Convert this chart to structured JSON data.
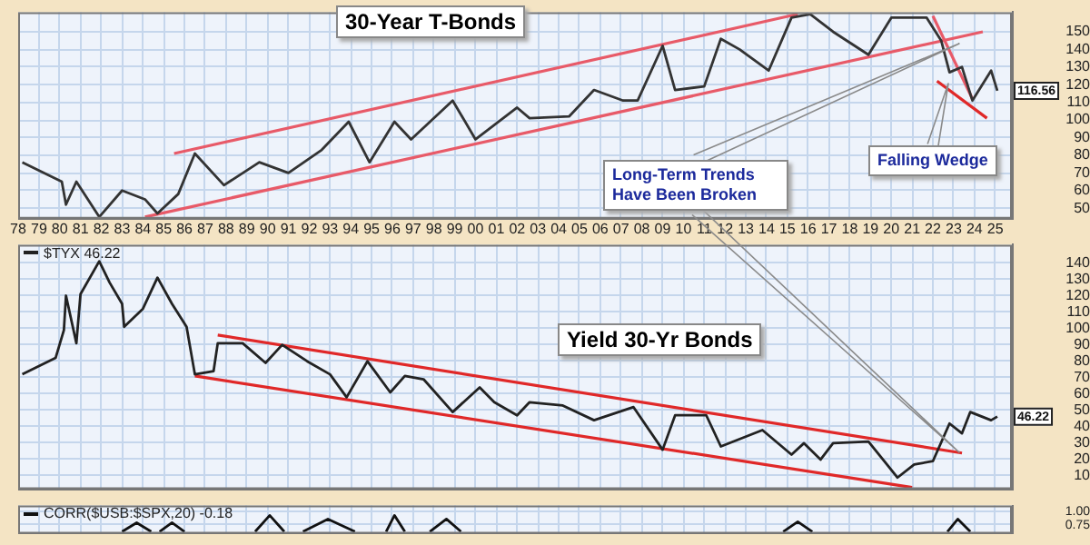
{
  "chart_data": [
    {
      "type": "line",
      "title": "30-Year T-Bonds",
      "xlim": [
        1978,
        2025.8
      ],
      "xticks": [
        {
          "value": 1978,
          "label": "78"
        },
        {
          "value": 1979,
          "label": "79"
        },
        {
          "value": 1980,
          "label": "80"
        },
        {
          "value": 1981,
          "label": "81"
        },
        {
          "value": 1982,
          "label": "82"
        },
        {
          "value": 1983,
          "label": "83"
        },
        {
          "value": 1984,
          "label": "84"
        },
        {
          "value": 1985,
          "label": "85"
        },
        {
          "value": 1986,
          "label": "86"
        },
        {
          "value": 1987,
          "label": "87"
        },
        {
          "value": 1988,
          "label": "88"
        },
        {
          "value": 1989,
          "label": "89"
        },
        {
          "value": 1990,
          "label": "90"
        },
        {
          "value": 1991,
          "label": "91"
        },
        {
          "value": 1992,
          "label": "92"
        },
        {
          "value": 1993,
          "label": "93"
        },
        {
          "value": 1994,
          "label": "94"
        },
        {
          "value": 1995,
          "label": "95"
        },
        {
          "value": 1996,
          "label": "96"
        },
        {
          "value": 1997,
          "label": "97"
        },
        {
          "value": 1998,
          "label": "98"
        },
        {
          "value": 1999,
          "label": "99"
        },
        {
          "value": 2000,
          "label": "00"
        },
        {
          "value": 2001,
          "label": "01"
        },
        {
          "value": 2002,
          "label": "02"
        },
        {
          "value": 2003,
          "label": "03"
        },
        {
          "value": 2004,
          "label": "04"
        },
        {
          "value": 2005,
          "label": "05"
        },
        {
          "value": 2006,
          "label": "06"
        },
        {
          "value": 2007,
          "label": "07"
        },
        {
          "value": 2008,
          "label": "08"
        },
        {
          "value": 2009,
          "label": "09"
        },
        {
          "value": 2010,
          "label": "10"
        },
        {
          "value": 2011,
          "label": "11"
        },
        {
          "value": 2012,
          "label": "12"
        },
        {
          "value": 2013,
          "label": "13"
        },
        {
          "value": 2014,
          "label": "14"
        },
        {
          "value": 2015,
          "label": "15"
        },
        {
          "value": 2016,
          "label": "16"
        },
        {
          "value": 2017,
          "label": "17"
        },
        {
          "value": 2018,
          "label": "18"
        },
        {
          "value": 2019,
          "label": "19"
        },
        {
          "value": 2020,
          "label": "20"
        },
        {
          "value": 2021,
          "label": "21"
        },
        {
          "value": 2022,
          "label": "22"
        },
        {
          "value": 2023,
          "label": "23"
        },
        {
          "value": 2024,
          "label": "24"
        },
        {
          "value": 2025,
          "label": "25"
        }
      ],
      "ylim": [
        44,
        161
      ],
      "yticks": [
        50,
        60,
        70,
        80,
        90,
        100,
        110,
        120,
        130,
        140,
        150
      ],
      "grid": true,
      "marker": "none",
      "annotations": [
        "Long-Term Trends Have Been Broken",
        "Falling Wedge"
      ],
      "series": [
        {
          "color": "#333333",
          "x": [
            1978.2,
            1980.1,
            1980.3,
            1980.8,
            1981.9,
            1983.0,
            1984.1,
            1984.7,
            1985.7,
            1986.5,
            1987.9,
            1989.6,
            1991.0,
            1992.6,
            1993.9,
            1994.9,
            1996.1,
            1996.9,
            1998.9,
            2000.0,
            2002.0,
            2002.6,
            2004.5,
            2005.7,
            2007.1,
            2007.8,
            2009.0,
            2009.6,
            2011.0,
            2011.8,
            2012.7,
            2014.1,
            2015.2,
            2016.1,
            2017.2,
            2018.9,
            2020.0,
            2021.7,
            2022.4,
            2022.8,
            2023.4,
            2023.9,
            2024.8,
            2025.1
          ],
          "values": [
            76,
            65,
            52,
            65,
            45,
            60,
            55,
            47,
            58,
            81,
            63,
            76,
            70,
            83,
            99,
            76,
            99,
            89,
            111,
            89,
            107,
            101,
            102,
            117,
            111,
            111,
            142,
            117,
            119,
            146,
            140,
            128,
            158,
            160,
            150,
            137,
            158,
            158,
            145,
            127,
            130,
            111,
            128,
            116.56
          ],
          "value_labels": [
            null,
            null,
            null,
            null,
            null,
            null,
            null,
            null,
            null,
            null,
            null,
            null,
            null,
            null,
            null,
            null,
            null,
            null,
            null,
            null,
            null,
            null,
            null,
            null,
            null,
            null,
            null,
            null,
            null,
            null,
            null,
            null,
            null,
            null,
            null,
            null,
            null,
            null,
            null,
            null,
            null,
            null,
            null,
            "116.56"
          ]
        },
        {
          "type": "line",
          "color": "#e85a68",
          "x": [
            1985.5,
            2015.5
          ],
          "values": [
            81,
            160
          ]
        },
        {
          "type": "line",
          "color": "#e85a68",
          "x": [
            1984.1,
            2024.4
          ],
          "values": [
            45,
            150
          ]
        },
        {
          "type": "line",
          "color": "#e85a68",
          "x": [
            2022.0,
            2023.9
          ],
          "values": [
            159,
            112
          ]
        },
        {
          "type": "line",
          "color": "#e02828",
          "x": [
            2022.2,
            2024.6
          ],
          "values": [
            122,
            101
          ]
        }
      ]
    },
    {
      "type": "line",
      "title": "Yield 30-Yr Bonds",
      "xlim": [
        1978,
        2025.8
      ],
      "xticks": [
        1978,
        1979,
        1980,
        1981,
        1982,
        1983,
        1984,
        1985,
        1986,
        1987,
        1988,
        1989,
        1990,
        1991,
        1992,
        1993,
        1994,
        1995,
        1996,
        1997,
        1998,
        1999,
        2000,
        2001,
        2002,
        2003,
        2004,
        2005,
        2006,
        2007,
        2008,
        2009,
        2010,
        2011,
        2012,
        2013,
        2014,
        2015,
        2016,
        2017,
        2018,
        2019,
        2020,
        2021,
        2022,
        2023,
        2024,
        2025
      ],
      "ylim": [
        2,
        151
      ],
      "yticks": [
        10,
        20,
        30,
        40,
        50,
        60,
        70,
        80,
        90,
        100,
        110,
        120,
        130,
        140
      ],
      "grid": true,
      "tick_labels": "y",
      "legend": "top left",
      "marker": "none",
      "series": [
        {
          "name": "$TYX 46.22",
          "color": "#222222",
          "x": [
            1978.2,
            1979.8,
            1980.2,
            1980.3,
            1980.8,
            1981.0,
            1981.9,
            1982.4,
            1983.0,
            1983.1,
            1984.0,
            1984.7,
            1985.4,
            1986.1,
            1986.5,
            1987.4,
            1987.6,
            1988.8,
            1989.9,
            1990.7,
            1991.9,
            1993.0,
            1993.8,
            1994.8,
            1995.9,
            1996.6,
            1997.5,
            1998.9,
            2000.2,
            2000.9,
            2002.0,
            2002.6,
            2004.2,
            2005.7,
            2007.6,
            2009.0,
            2009.6,
            2011.1,
            2011.8,
            2013.8,
            2015.2,
            2015.8,
            2016.6,
            2017.2,
            2018.9,
            2020.3,
            2021.1,
            2022.0,
            2022.8,
            2023.4,
            2023.8,
            2024.8,
            2025.1
          ],
          "values": [
            72,
            82,
            99,
            120,
            91,
            121,
            141,
            128,
            115,
            101,
            112,
            131,
            115,
            101,
            72,
            74,
            91,
            91,
            79,
            90,
            80,
            72,
            58,
            80,
            61,
            71,
            69,
            49,
            64,
            55,
            47,
            55,
            53,
            44,
            52,
            26,
            47,
            47,
            28,
            38,
            23,
            30,
            20,
            30,
            31,
            9,
            17,
            19,
            42,
            36,
            49,
            44,
            46.22
          ],
          "value_labels": [
            null,
            null,
            null,
            null,
            null,
            null,
            null,
            null,
            null,
            null,
            null,
            null,
            null,
            null,
            null,
            null,
            null,
            null,
            null,
            null,
            null,
            null,
            null,
            null,
            null,
            null,
            null,
            null,
            null,
            null,
            null,
            null,
            null,
            null,
            null,
            null,
            null,
            null,
            null,
            null,
            null,
            null,
            null,
            null,
            null,
            null,
            null,
            null,
            null,
            null,
            null,
            null,
            "46.22"
          ]
        },
        {
          "type": "line",
          "color": "#e02828",
          "x": [
            1987.6,
            2023.4
          ],
          "values": [
            96,
            24
          ]
        },
        {
          "type": "line",
          "color": "#e02828",
          "x": [
            1986.5,
            2021
          ],
          "values": [
            71,
            3
          ]
        }
      ]
    },
    {
      "type": "line",
      "xlim": [
        1978,
        2025.8
      ],
      "xticks": [
        1978,
        1979,
        1980,
        1981,
        1982,
        1983,
        1984,
        1985,
        1986,
        1987,
        1988,
        1989,
        1990,
        1991,
        1992,
        1993,
        1994,
        1995,
        1996,
        1997,
        1998,
        1999,
        2000,
        2001,
        2002,
        2003,
        2004,
        2005,
        2006,
        2007,
        2008,
        2009,
        2010,
        2011,
        2012,
        2013,
        2014,
        2015,
        2016,
        2017,
        2018,
        2019,
        2020,
        2021,
        2022,
        2023,
        2024,
        2025
      ],
      "ylim": [
        0.58,
        1.12
      ],
      "yticks": [
        {
          "value": 1,
          "label": "1.00"
        },
        {
          "value": 0.75,
          "label": "0.75"
        }
      ],
      "grid": true,
      "tick_labels": "y",
      "legend": "top left",
      "marker": "none",
      "series": [
        {
          "name": "CORR($USB:$SPX,20) -0.18",
          "color": "#111111",
          "x": [
            1983.0,
            1983.7,
            1984.4,
            1984.5,
            1984.8,
            1985.4,
            1986.0,
            1987,
            1989.4,
            1990.1,
            1990.8,
            1991,
            1991.7,
            1992.9,
            1994.2,
            1994.5,
            1995.7,
            1996.1,
            1996.6,
            1997,
            1997.8,
            1998.6,
            1999.3,
            2000,
            2014.8,
            2015.5,
            2016.2,
            2017,
            2022.7,
            2023.2,
            2023.8
          ],
          "values": [
            0.62,
            0.79,
            0.62,
            null,
            0.62,
            0.79,
            0.62,
            null,
            0.62,
            0.93,
            0.62,
            null,
            0.62,
            0.86,
            0.62,
            null,
            0.62,
            0.93,
            0.62,
            null,
            0.62,
            0.86,
            0.62,
            null,
            0.62,
            0.81,
            0.62,
            null,
            0.62,
            0.86,
            0.62
          ]
        }
      ]
    }
  ]
}
